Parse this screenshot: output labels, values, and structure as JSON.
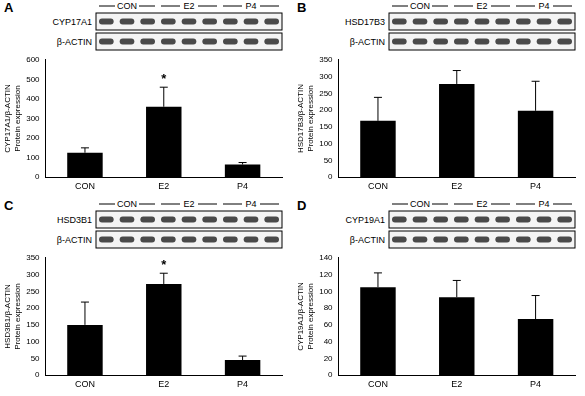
{
  "chart_data": [
    {
      "type": "bar",
      "panel": "A",
      "blot_groups": [
        "CON",
        "E2",
        "P4"
      ],
      "blot_labels": [
        "CYP17A1",
        "β-ACTIN"
      ],
      "categories": [
        "CON",
        "E2",
        "P4"
      ],
      "values": [
        125,
        360,
        65
      ],
      "errors": [
        25,
        100,
        10
      ],
      "color": "#000000",
      "y_label": [
        "CYP17A1/β-ACTIN",
        "Protein expression"
      ],
      "ylim": [
        0,
        600
      ],
      "yticks": [
        0,
        100,
        200,
        300,
        400,
        500,
        600
      ],
      "grid": false,
      "annotations": [
        {
          "category": "E2",
          "text": "*"
        }
      ]
    },
    {
      "type": "bar",
      "panel": "B",
      "blot_groups": [
        "CON",
        "E2",
        "P4"
      ],
      "blot_labels": [
        "HSD17B3",
        "β-ACTIN"
      ],
      "categories": [
        "CON",
        "E2",
        "P4"
      ],
      "values": [
        168,
        278,
        198
      ],
      "errors": [
        70,
        40,
        88
      ],
      "color": "#000000",
      "y_label": [
        "HSD17B3/β-ACTIN",
        "Protein expression"
      ],
      "ylim": [
        0,
        350
      ],
      "yticks": [
        0,
        50,
        100,
        150,
        200,
        250,
        300,
        350
      ],
      "grid": false,
      "annotations": []
    },
    {
      "type": "bar",
      "panel": "C",
      "blot_groups": [
        "CON",
        "E2",
        "P4"
      ],
      "blot_labels": [
        "HSD3B1",
        "β-ACTIN"
      ],
      "categories": [
        "CON",
        "E2",
        "P4"
      ],
      "values": [
        150,
        272,
        45
      ],
      "errors": [
        68,
        32,
        12
      ],
      "color": "#000000",
      "y_label": [
        "HSD3B1/β-ACTIN",
        "Protein expression"
      ],
      "ylim": [
        0,
        350
      ],
      "yticks": [
        0,
        50,
        100,
        150,
        200,
        250,
        300,
        350
      ],
      "grid": false,
      "annotations": [
        {
          "category": "E2",
          "text": "*"
        }
      ]
    },
    {
      "type": "bar",
      "panel": "D",
      "blot_groups": [
        "CON",
        "E2",
        "P4"
      ],
      "blot_labels": [
        "CYP19A1",
        "β-ACTIN"
      ],
      "categories": [
        "CON",
        "E2",
        "P4"
      ],
      "values": [
        105,
        93,
        67
      ],
      "errors": [
        17,
        20,
        28
      ],
      "color": "#000000",
      "y_label": [
        "CYP19A1/β-ACTIN",
        "Protein expression"
      ],
      "ylim": [
        0,
        140
      ],
      "yticks": [
        0,
        20,
        40,
        60,
        80,
        100,
        120,
        140
      ],
      "grid": false,
      "annotations": []
    }
  ]
}
